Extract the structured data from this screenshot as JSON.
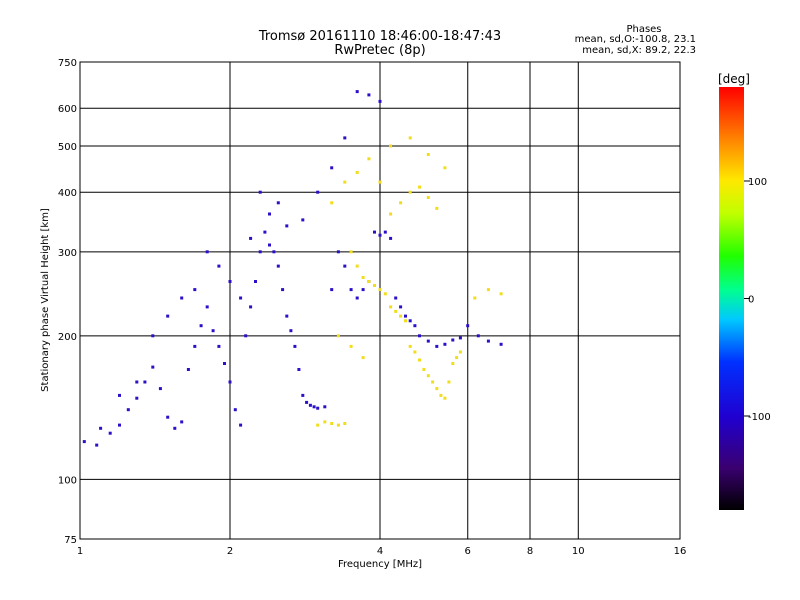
{
  "header": {
    "title": "Tromsø 20161110 18:46:00-18:47:43",
    "subtitle": "RwPretec (8p)"
  },
  "phases": {
    "title": "Phases",
    "line_o": "mean, sd,O:-100.8, 23.1",
    "line_x": "mean, sd,X: 89.2, 22.3"
  },
  "colorbar": {
    "unit": "[deg]",
    "min": -180,
    "max": 180,
    "ticks": [
      100,
      0,
      -100
    ]
  },
  "chart_data": {
    "type": "scatter",
    "title": "Tromsø 20161110 18:46:00-18:47:43",
    "subtitle": "RwPretec (8p)",
    "xlabel": "Frequency [MHz]",
    "ylabel": "Stationary phase Virtual Height [km]",
    "x_scale": "log",
    "y_scale": "log",
    "xlim": [
      1,
      16
    ],
    "ylim": [
      75,
      750
    ],
    "x_ticks": [
      1,
      2,
      4,
      6,
      8,
      10,
      16
    ],
    "y_ticks": [
      75,
      100,
      200,
      300,
      400,
      500,
      600,
      750
    ],
    "grid": true,
    "color_variable": "phase [deg]",
    "series": [
      {
        "name": "O",
        "color": "#2a10c8",
        "points": [
          [
            1.02,
            120
          ],
          [
            1.08,
            118
          ],
          [
            1.15,
            125
          ],
          [
            1.2,
            130
          ],
          [
            1.25,
            140
          ],
          [
            1.3,
            148
          ],
          [
            1.35,
            160
          ],
          [
            1.4,
            172
          ],
          [
            1.45,
            155
          ],
          [
            1.5,
            135
          ],
          [
            1.55,
            128
          ],
          [
            1.6,
            132
          ],
          [
            1.65,
            170
          ],
          [
            1.7,
            190
          ],
          [
            1.75,
            210
          ],
          [
            1.8,
            230
          ],
          [
            1.85,
            205
          ],
          [
            1.9,
            190
          ],
          [
            1.95,
            175
          ],
          [
            2.0,
            160
          ],
          [
            2.05,
            140
          ],
          [
            2.1,
            130
          ],
          [
            2.15,
            200
          ],
          [
            2.2,
            230
          ],
          [
            2.25,
            260
          ],
          [
            2.3,
            300
          ],
          [
            2.35,
            330
          ],
          [
            2.4,
            360
          ],
          [
            2.45,
            300
          ],
          [
            2.5,
            280
          ],
          [
            2.55,
            250
          ],
          [
            2.6,
            220
          ],
          [
            2.65,
            205
          ],
          [
            2.7,
            190
          ],
          [
            2.75,
            170
          ],
          [
            2.8,
            150
          ],
          [
            2.85,
            145
          ],
          [
            2.9,
            143
          ],
          [
            2.95,
            142
          ],
          [
            3.0,
            141
          ],
          [
            3.1,
            142
          ],
          [
            3.2,
            250
          ],
          [
            3.3,
            300
          ],
          [
            3.4,
            280
          ],
          [
            3.5,
            250
          ],
          [
            3.6,
            240
          ],
          [
            3.7,
            250
          ],
          [
            3.8,
            260
          ],
          [
            3.9,
            330
          ],
          [
            4.0,
            325
          ],
          [
            4.1,
            330
          ],
          [
            4.2,
            320
          ],
          [
            4.3,
            240
          ],
          [
            4.4,
            230
          ],
          [
            4.5,
            220
          ],
          [
            4.6,
            215
          ],
          [
            4.7,
            210
          ],
          [
            4.8,
            200
          ],
          [
            5.0,
            195
          ],
          [
            5.2,
            190
          ],
          [
            5.4,
            192
          ],
          [
            5.6,
            196
          ],
          [
            5.8,
            198
          ],
          [
            6.0,
            210
          ],
          [
            6.3,
            200
          ],
          [
            6.6,
            195
          ],
          [
            7.0,
            192
          ],
          [
            2.2,
            320
          ],
          [
            2.4,
            310
          ],
          [
            2.6,
            340
          ],
          [
            2.8,
            350
          ],
          [
            2.3,
            400
          ],
          [
            2.5,
            380
          ],
          [
            3.0,
            400
          ],
          [
            3.2,
            450
          ],
          [
            3.4,
            520
          ],
          [
            3.6,
            650
          ],
          [
            3.8,
            640
          ],
          [
            4.0,
            620
          ],
          [
            1.8,
            300
          ],
          [
            1.9,
            280
          ],
          [
            2.0,
            260
          ],
          [
            2.1,
            240
          ],
          [
            1.7,
            250
          ],
          [
            1.6,
            240
          ],
          [
            1.5,
            220
          ],
          [
            1.4,
            200
          ],
          [
            1.3,
            160
          ],
          [
            1.2,
            150
          ],
          [
            1.1,
            128
          ]
        ]
      },
      {
        "name": "X",
        "color": "#f2dd1a",
        "points": [
          [
            3.0,
            130
          ],
          [
            3.1,
            132
          ],
          [
            3.2,
            131
          ],
          [
            3.3,
            130
          ],
          [
            3.4,
            131
          ],
          [
            3.5,
            300
          ],
          [
            3.6,
            280
          ],
          [
            3.7,
            265
          ],
          [
            3.8,
            260
          ],
          [
            3.9,
            255
          ],
          [
            4.0,
            250
          ],
          [
            4.1,
            245
          ],
          [
            4.2,
            230
          ],
          [
            4.3,
            225
          ],
          [
            4.4,
            220
          ],
          [
            4.5,
            215
          ],
          [
            4.6,
            190
          ],
          [
            4.7,
            185
          ],
          [
            4.8,
            178
          ],
          [
            4.9,
            170
          ],
          [
            5.0,
            165
          ],
          [
            5.1,
            160
          ],
          [
            5.2,
            155
          ],
          [
            5.3,
            150
          ],
          [
            5.4,
            148
          ],
          [
            5.5,
            160
          ],
          [
            5.6,
            175
          ],
          [
            5.7,
            180
          ],
          [
            5.8,
            185
          ],
          [
            4.2,
            360
          ],
          [
            4.4,
            380
          ],
          [
            4.6,
            400
          ],
          [
            4.8,
            410
          ],
          [
            5.0,
            390
          ],
          [
            5.2,
            370
          ],
          [
            4.0,
            420
          ],
          [
            3.6,
            440
          ],
          [
            3.8,
            470
          ],
          [
            4.2,
            500
          ],
          [
            4.6,
            520
          ],
          [
            5.0,
            480
          ],
          [
            5.4,
            450
          ],
          [
            3.4,
            420
          ],
          [
            3.2,
            380
          ],
          [
            6.2,
            240
          ],
          [
            6.6,
            250
          ],
          [
            7.0,
            245
          ],
          [
            3.3,
            200
          ],
          [
            3.5,
            190
          ],
          [
            3.7,
            180
          ]
        ]
      }
    ]
  }
}
